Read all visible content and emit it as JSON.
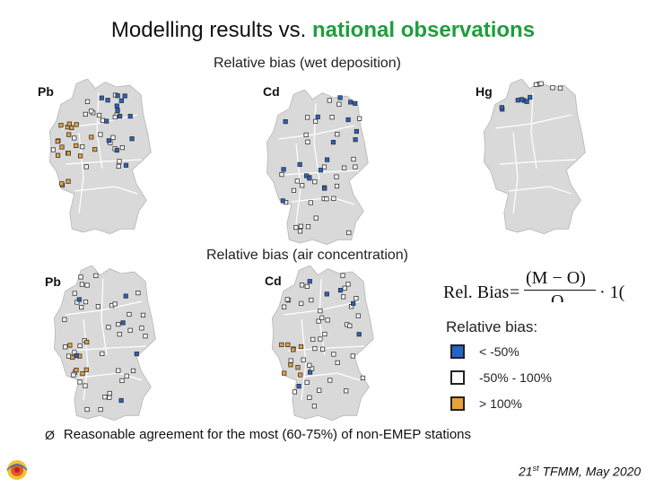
{
  "slide": {
    "title_part1": "Modelling results vs. ",
    "title_part2": "national observations",
    "section1_title": "Relative bias (wet deposition)",
    "section2_title": "Relative bias (air concentration)",
    "footer_text": "21st TFMM, May 2020",
    "bullet_symbol": "Ø",
    "bullet_text": "Reasonable agreement for the most (60-75%) of non-EMEP stations"
  },
  "maps": [
    {
      "label": "Pb",
      "panel": "wet-deposition"
    },
    {
      "label": "Cd",
      "panel": "wet-deposition"
    },
    {
      "label": "Hg",
      "panel": "wet-deposition"
    },
    {
      "label": "Pb",
      "panel": "air-concentration"
    },
    {
      "label": "Cd",
      "panel": "air-concentration"
    }
  ],
  "formula": {
    "lhs": "Rel. Bias",
    "equals": "=",
    "numerator": "(M − O)",
    "denominator": "O",
    "multiplier": "· 1("
  },
  "legend": {
    "title": "Relative bias:",
    "items": [
      {
        "label": "< -50%",
        "color": "#2563c4"
      },
      {
        "label": "-50% - 100%",
        "color": "#ffffff"
      },
      {
        "label": "> 100%",
        "color": "#e8a23a"
      }
    ]
  },
  "colors": {
    "map_fill": "#d9d9d9",
    "map_border": "#ffffff",
    "low_bias": "#2563c4",
    "mid_bias": "#ffffff",
    "high_bias": "#e8a23a",
    "title_highlight": "#1f9e3c"
  },
  "logo": {
    "text": "MSC-E"
  }
}
